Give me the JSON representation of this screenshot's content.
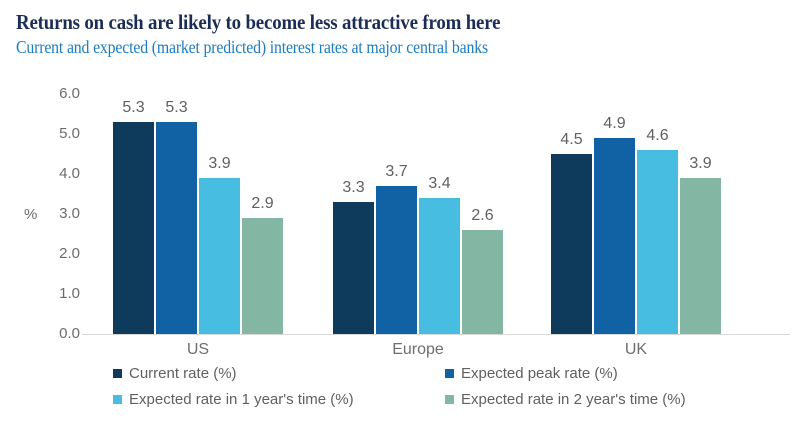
{
  "header": {
    "title": "Returns on cash are likely to become less attractive from here",
    "subtitle": "Current and expected (market predicted) interest rates at major central banks"
  },
  "chart_data": {
    "type": "bar",
    "categories": [
      "US",
      "Europe",
      "UK"
    ],
    "series": [
      {
        "name": "Current rate (%)",
        "color": "#0e3a5c",
        "values": [
          5.3,
          3.3,
          4.5
        ]
      },
      {
        "name": "Expected peak rate (%)",
        "color": "#1062a5",
        "values": [
          5.3,
          3.7,
          4.9
        ]
      },
      {
        "name": "Expected rate in 1 year's time (%)",
        "color": "#47bde1",
        "values": [
          3.9,
          3.4,
          4.6
        ]
      },
      {
        "name": "Expected rate in 2 year's time (%)",
        "color": "#83b7a3",
        "values": [
          2.9,
          2.6,
          3.9
        ]
      }
    ],
    "ylabel": "%",
    "ylim": [
      0.0,
      6.0
    ],
    "yticks": [
      "6.0",
      "5.0",
      "4.0",
      "3.0",
      "2.0",
      "1.0",
      "0.0"
    ],
    "grid": false,
    "legend_position": "bottom",
    "value_labels": true,
    "value_label_format": "one-decimal"
  },
  "colors": {
    "title": "#1b2c55",
    "subtitle": "#1c7dc1",
    "tick_text": "#6b6c6f",
    "category_text": "#6d6e71",
    "value_text": "#5f6063",
    "axis_line": "#d9d9d9",
    "background": "#ffffff"
  }
}
